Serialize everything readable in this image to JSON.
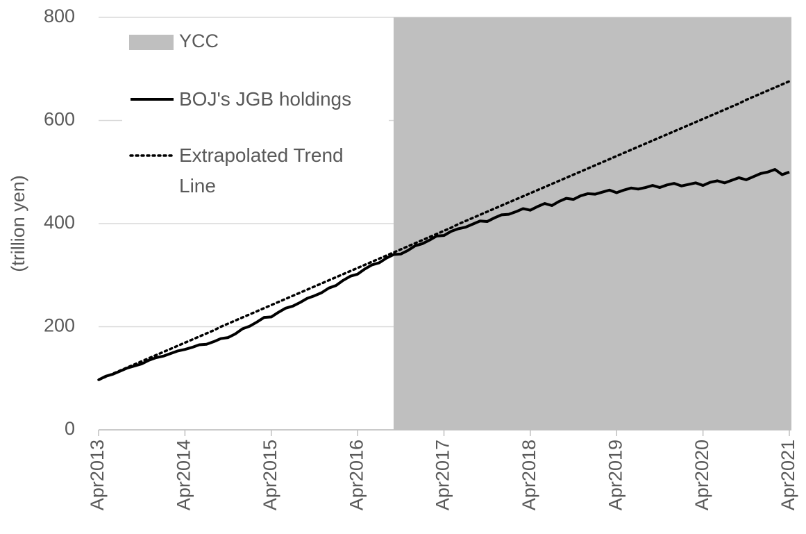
{
  "chart_data": {
    "type": "line",
    "ylabel": "(trillion yen)",
    "categories": [
      "Apr2013",
      null,
      null,
      null,
      null,
      null,
      null,
      null,
      null,
      null,
      null,
      null,
      "Apr2014",
      null,
      null,
      null,
      null,
      null,
      null,
      null,
      null,
      null,
      null,
      null,
      "Apr2015",
      null,
      null,
      null,
      null,
      null,
      null,
      null,
      null,
      null,
      null,
      null,
      "Apr2016",
      null,
      null,
      null,
      null,
      null,
      null,
      null,
      null,
      null,
      null,
      null,
      "Apr2017",
      null,
      null,
      null,
      null,
      null,
      null,
      null,
      null,
      null,
      null,
      null,
      "Apr2018",
      null,
      null,
      null,
      null,
      null,
      null,
      null,
      null,
      null,
      null,
      null,
      "Apr2019",
      null,
      null,
      null,
      null,
      null,
      null,
      null,
      null,
      null,
      null,
      null,
      "Apr2020",
      null,
      null,
      null,
      null,
      null,
      null,
      null,
      null,
      null,
      null,
      null,
      "Apr2021"
    ],
    "span": {
      "name": "YCC",
      "from": 41,
      "to": 96,
      "color": "#bfbfbf"
    },
    "series": [
      {
        "name": "BOJ's JGB holdings",
        "color": "#000000",
        "style": "solid",
        "values": [
          97,
          104,
          108,
          114,
          120,
          124,
          128,
          135,
          140,
          143,
          148,
          153,
          156,
          160,
          165,
          166,
          171,
          177,
          179,
          186,
          196,
          201,
          209,
          218,
          219,
          228,
          236,
          240,
          247,
          255,
          260,
          266,
          275,
          280,
          290,
          298,
          302,
          312,
          320,
          324,
          333,
          340,
          341,
          348,
          357,
          361,
          368,
          376,
          377,
          385,
          390,
          393,
          399,
          405,
          404,
          411,
          417,
          418,
          423,
          429,
          426,
          433,
          439,
          435,
          443,
          449,
          447,
          454,
          458,
          457,
          461,
          465,
          460,
          465,
          469,
          467,
          470,
          474,
          470,
          475,
          478,
          473,
          476,
          479,
          474,
          480,
          483,
          479,
          484,
          489,
          485,
          491,
          497,
          500,
          505,
          495,
          500
        ]
      },
      {
        "name": "Extrapolated Trend Line",
        "color": "#000000",
        "style": "dotted",
        "values": [
          97,
          103,
          109,
          115,
          121,
          127,
          133,
          139,
          145,
          151,
          157,
          163,
          169,
          175,
          181,
          187,
          193,
          200,
          206,
          212,
          218,
          224,
          230,
          236,
          242,
          248,
          254,
          260,
          266,
          272,
          278,
          284,
          290,
          296,
          302,
          308,
          314,
          320,
          326,
          332,
          338,
          344,
          350,
          356,
          362,
          368,
          374,
          380,
          386,
          392,
          399,
          405,
          411,
          417,
          423,
          429,
          435,
          441,
          447,
          453,
          459,
          465,
          471,
          477,
          483,
          489,
          495,
          501,
          507,
          513,
          519,
          525,
          531,
          537,
          543,
          549,
          555,
          561,
          567,
          573,
          579,
          585,
          591,
          597,
          603,
          609,
          615,
          621,
          627,
          633,
          640,
          646,
          652,
          658,
          664,
          670,
          676
        ]
      }
    ],
    "ylim": [
      0,
      800
    ],
    "yticks": [
      0,
      200,
      400,
      600,
      800
    ],
    "grid": true,
    "legend": "upper left"
  }
}
